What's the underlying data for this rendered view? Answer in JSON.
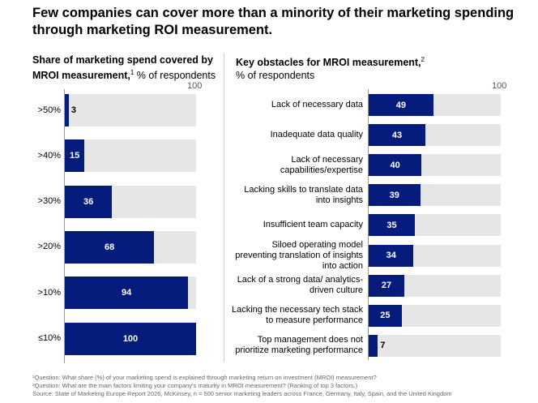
{
  "title": "Few companies can cover more than a minority of their marketing spending through marketing ROI measurement.",
  "chart_data": [
    {
      "type": "bar",
      "orientation": "horizontal",
      "title_bold": "Share of marketing spend covered by MROI measurement,",
      "title_sup": "1",
      "title_rest": " % of respondents",
      "axis_max_label": "100",
      "xlim": [
        0,
        100
      ],
      "categories": [
        ">50%",
        ">40%",
        ">30%",
        ">20%",
        ">10%",
        "≤10%"
      ],
      "values": [
        3,
        15,
        36,
        68,
        94,
        100
      ]
    },
    {
      "type": "bar",
      "orientation": "horizontal",
      "title_bold": "Key obstacles for MROI measurement,",
      "title_sup": "2",
      "title_rest": "% of respondents",
      "axis_max_label": "100",
      "xlim": [
        0,
        100
      ],
      "categories": [
        "Lack of necessary data",
        "Inadequate data quality",
        "Lack of necessary capabilities/expertise",
        "Lacking skills to translate data into insights",
        "Insufficient team capacity",
        "Siloed operating model preventing translation of insights into action",
        "Lack of a strong data/ analytics-driven culture",
        "Lacking the necessary tech stack to measure performance",
        "Top management does not prioritize marketing performance"
      ],
      "values": [
        49,
        43,
        40,
        39,
        35,
        34,
        27,
        25,
        7
      ]
    }
  ],
  "colors": {
    "bar": "#051c7d",
    "track": "#e6e6e6"
  },
  "footnotes": [
    "¹Question: What share (%) of your marketing spend is explained through marketing return on investment (MROI) measurement?",
    "²Question: What are the main factors limiting your company's maturity in MROI measurement? (Ranking of top 3 factors.)",
    "Source: State of Marketing Europe Report 2026, McKinsey, n = 500 senior marketing leaders across France, Germany, Italy, Spain, and the United Kingdom"
  ]
}
